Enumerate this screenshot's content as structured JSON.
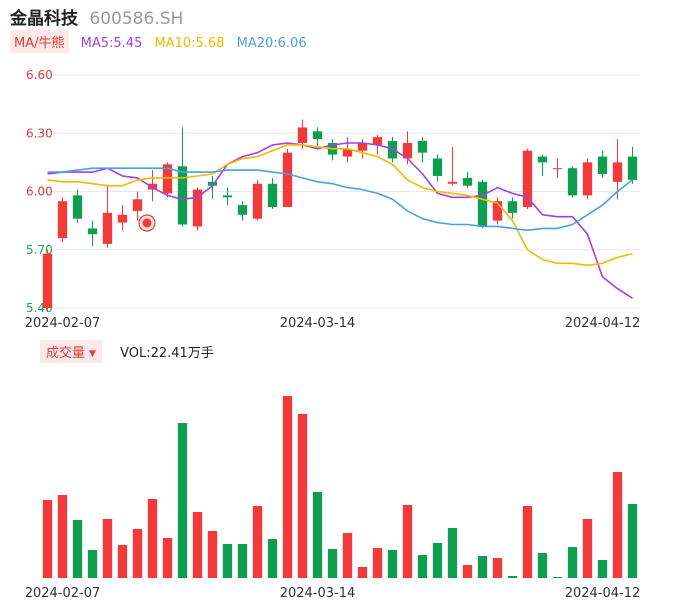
{
  "header": {
    "name": "金晶科技",
    "code": "600586.SH"
  },
  "ma_legend": {
    "tag": "MA/牛熊",
    "items": [
      {
        "label": "MA5:5.45",
        "color": "#a042e6"
      },
      {
        "label": "MA10:5.68",
        "color": "#f5b800"
      },
      {
        "label": "MA20:6.06",
        "color": "#4a9fe8"
      }
    ]
  },
  "volume_legend": {
    "tag": "成交量",
    "value": "VOL:22.41万手"
  },
  "colors": {
    "up": "#f23a3a",
    "down": "#0f9e4f",
    "flat_up": "#e23b3b",
    "grid": "#e8e8e8"
  },
  "chart_data": [
    {
      "type": "candlestick",
      "y_ticks": [
        "6.60",
        "6.30",
        "6.00",
        "5.70",
        "5.40"
      ],
      "ylim": [
        5.4,
        6.6
      ],
      "x_tick_labels": [
        {
          "label": "2024-02-07",
          "index": 1
        },
        {
          "label": "2024-03-14",
          "index": 18
        },
        {
          "label": "2024-04-12",
          "index": 37
        }
      ],
      "candles": [
        {
          "open": 5.4,
          "close": 5.68,
          "high": 5.7,
          "low": 5.38
        },
        {
          "open": 5.76,
          "close": 5.95,
          "high": 5.97,
          "low": 5.74
        },
        {
          "open": 5.98,
          "close": 5.86,
          "high": 6.01,
          "low": 5.84
        },
        {
          "open": 5.81,
          "close": 5.78,
          "high": 5.85,
          "low": 5.72
        },
        {
          "open": 5.73,
          "close": 5.89,
          "high": 6.03,
          "low": 5.71
        },
        {
          "open": 5.84,
          "close": 5.88,
          "high": 5.93,
          "low": 5.8
        },
        {
          "open": 5.9,
          "close": 5.96,
          "high": 6.0,
          "low": 5.85
        },
        {
          "open": 6.01,
          "close": 6.04,
          "high": 6.11,
          "low": 5.95
        },
        {
          "open": 5.99,
          "close": 6.14,
          "high": 6.15,
          "low": 5.97
        },
        {
          "open": 6.13,
          "close": 5.83,
          "high": 6.33,
          "low": 5.82
        },
        {
          "open": 5.82,
          "close": 6.01,
          "high": 6.02,
          "low": 5.8
        },
        {
          "open": 6.05,
          "close": 6.03,
          "high": 6.08,
          "low": 5.96
        },
        {
          "open": 5.98,
          "close": 5.97,
          "high": 6.02,
          "low": 5.93
        },
        {
          "open": 5.93,
          "close": 5.88,
          "high": 5.95,
          "low": 5.85
        },
        {
          "open": 5.86,
          "close": 6.04,
          "high": 6.06,
          "low": 5.85
        },
        {
          "open": 6.04,
          "close": 5.92,
          "high": 6.07,
          "low": 5.91
        },
        {
          "open": 5.92,
          "close": 6.2,
          "high": 6.22,
          "low": 5.92
        },
        {
          "open": 6.25,
          "close": 6.33,
          "high": 6.37,
          "low": 6.22
        },
        {
          "open": 6.31,
          "close": 6.27,
          "high": 6.33,
          "low": 6.23
        },
        {
          "open": 6.25,
          "close": 6.19,
          "high": 6.27,
          "low": 6.16
        },
        {
          "open": 6.18,
          "close": 6.22,
          "high": 6.28,
          "low": 6.15
        },
        {
          "open": 6.21,
          "close": 6.25,
          "high": 6.27,
          "low": 6.17
        },
        {
          "open": 6.24,
          "close": 6.28,
          "high": 6.29,
          "low": 6.19
        },
        {
          "open": 6.26,
          "close": 6.17,
          "high": 6.28,
          "low": 6.15
        },
        {
          "open": 6.17,
          "close": 6.25,
          "high": 6.31,
          "low": 6.14
        },
        {
          "open": 6.26,
          "close": 6.2,
          "high": 6.28,
          "low": 6.15
        },
        {
          "open": 6.17,
          "close": 6.08,
          "high": 6.19,
          "low": 6.05
        },
        {
          "open": 6.04,
          "close": 6.05,
          "high": 6.23,
          "low": 6.03
        },
        {
          "open": 6.07,
          "close": 6.03,
          "high": 6.1,
          "low": 6.02
        },
        {
          "open": 6.05,
          "close": 5.82,
          "high": 6.06,
          "low": 5.81
        },
        {
          "open": 5.85,
          "close": 5.95,
          "high": 5.97,
          "low": 5.83
        },
        {
          "open": 5.95,
          "close": 5.89,
          "high": 5.97,
          "low": 5.86
        },
        {
          "open": 5.92,
          "close": 6.21,
          "high": 6.22,
          "low": 5.91
        },
        {
          "open": 6.18,
          "close": 6.15,
          "high": 6.19,
          "low": 6.08
        },
        {
          "open": 6.12,
          "close": 6.12,
          "high": 6.17,
          "low": 6.07
        },
        {
          "open": 6.12,
          "close": 5.98,
          "high": 6.13,
          "low": 5.97
        },
        {
          "open": 5.98,
          "close": 6.15,
          "high": 6.17,
          "low": 5.96
        },
        {
          "open": 6.18,
          "close": 6.09,
          "high": 6.21,
          "low": 6.07
        },
        {
          "open": 6.05,
          "close": 6.15,
          "high": 6.27,
          "low": 5.96
        },
        {
          "open": 6.18,
          "close": 6.06,
          "high": 6.23,
          "low": 6.04
        }
      ],
      "ma5": [
        6.09,
        6.1,
        6.1,
        6.1,
        6.12,
        6.08,
        6.07,
        6.02,
        5.98,
        5.96,
        5.97,
        6.03,
        6.14,
        6.18,
        6.2,
        6.24,
        6.25,
        6.24,
        6.22,
        6.24,
        6.25,
        6.25,
        6.24,
        6.22,
        6.17,
        6.09,
        5.99,
        5.97,
        5.97,
        5.98,
        6.02,
        5.99,
        5.97,
        5.88,
        5.87,
        5.87,
        5.78,
        5.56,
        5.5,
        5.45
      ],
      "ma10": [
        6.06,
        6.05,
        6.05,
        6.04,
        6.03,
        6.03,
        6.06,
        6.07,
        6.07,
        6.07,
        6.08,
        6.09,
        6.14,
        6.17,
        6.18,
        6.21,
        6.24,
        6.24,
        6.23,
        6.22,
        6.22,
        6.2,
        6.18,
        6.14,
        6.06,
        6.02,
        6.0,
        5.99,
        5.98,
        5.96,
        5.94,
        5.85,
        5.7,
        5.65,
        5.63,
        5.63,
        5.62,
        5.63,
        5.66,
        5.68
      ],
      "ma20": [
        6.1,
        6.1,
        6.11,
        6.12,
        6.12,
        6.12,
        6.12,
        6.12,
        6.12,
        6.1,
        6.1,
        6.1,
        6.11,
        6.11,
        6.11,
        6.1,
        6.09,
        6.07,
        6.05,
        6.04,
        6.02,
        6.01,
        5.99,
        5.96,
        5.9,
        5.86,
        5.84,
        5.83,
        5.83,
        5.82,
        5.82,
        5.81,
        5.8,
        5.81,
        5.81,
        5.83,
        5.88,
        5.93,
        6.0,
        6.06
      ]
    },
    {
      "type": "bar",
      "series_name": "成交量",
      "x_tick_labels": [
        {
          "label": "2024-02-07",
          "index": 1
        },
        {
          "label": "2024-03-14",
          "index": 18
        },
        {
          "label": "2024-04-12",
          "index": 37
        }
      ],
      "volumes": [
        78,
        83,
        58,
        28,
        59,
        33,
        49,
        79,
        40,
        155,
        66,
        47,
        34,
        34,
        72,
        39,
        182,
        164,
        86,
        29,
        45,
        11,
        30,
        28,
        73,
        23,
        35,
        50,
        13,
        22,
        20,
        2,
        72,
        25,
        1,
        31,
        59,
        18,
        106,
        74
      ],
      "directions": [
        "up",
        "up",
        "down",
        "down",
        "up",
        "up",
        "up",
        "up",
        "up",
        "down",
        "up",
        "up",
        "down",
        "down",
        "up",
        "down",
        "up",
        "up",
        "down",
        "down",
        "up",
        "up",
        "up",
        "down",
        "up",
        "down",
        "down",
        "down",
        "up",
        "down",
        "up",
        "down",
        "up",
        "down",
        "down",
        "down",
        "up",
        "down",
        "up",
        "down"
      ]
    }
  ]
}
